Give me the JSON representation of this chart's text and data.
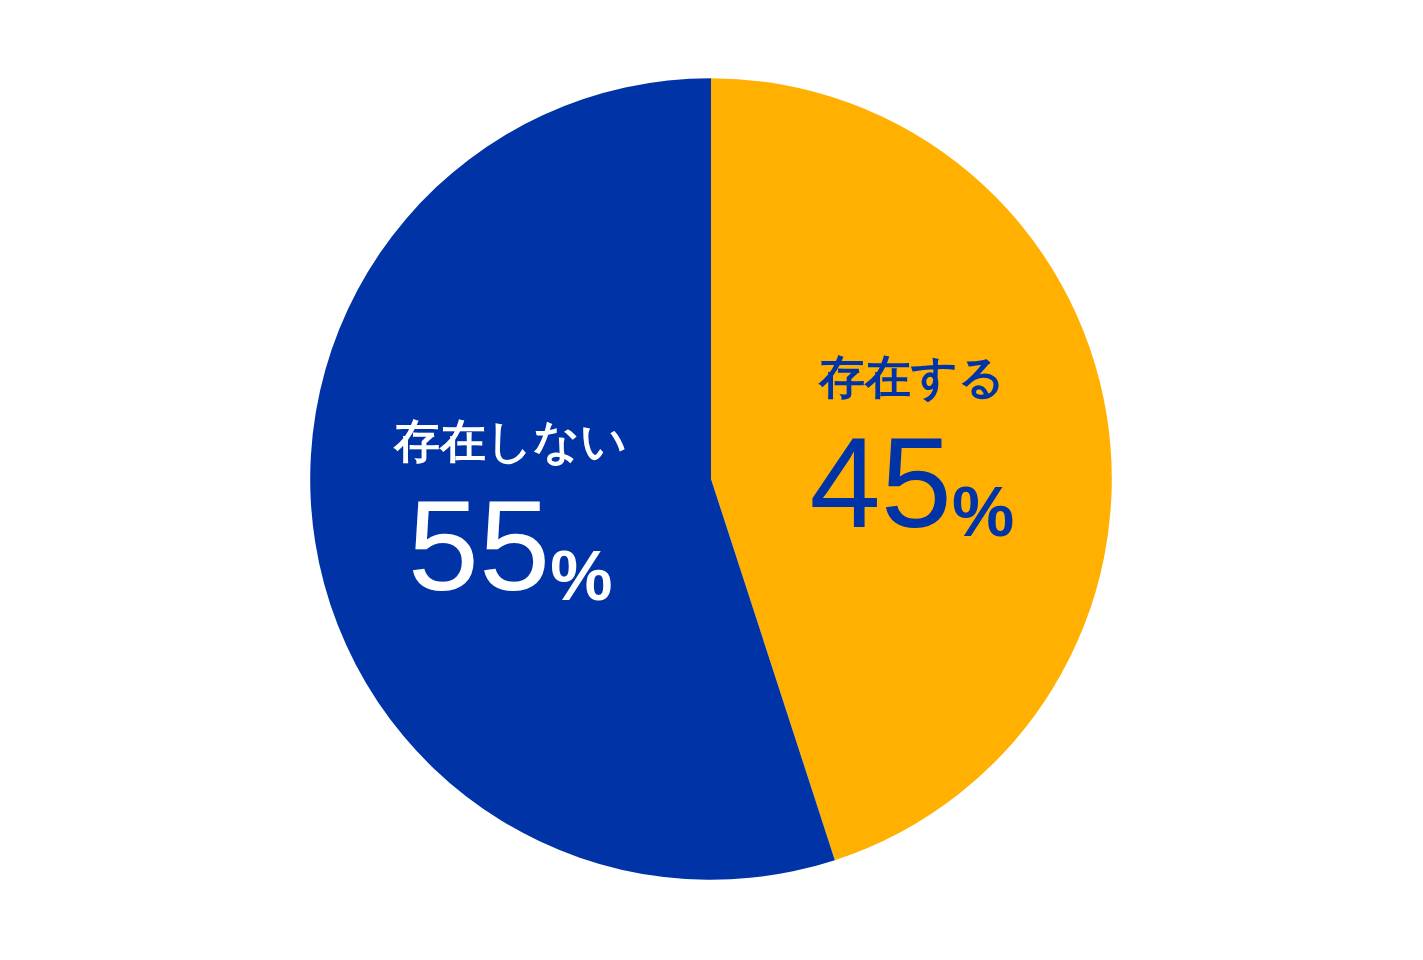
{
  "chart_data": {
    "type": "pie",
    "categories": [
      "存在する",
      "存在しない"
    ],
    "values": [
      45,
      55
    ],
    "value_labels": [
      "45%",
      "55%"
    ],
    "colors": [
      "#ffb000",
      "#0033a6"
    ]
  }
}
